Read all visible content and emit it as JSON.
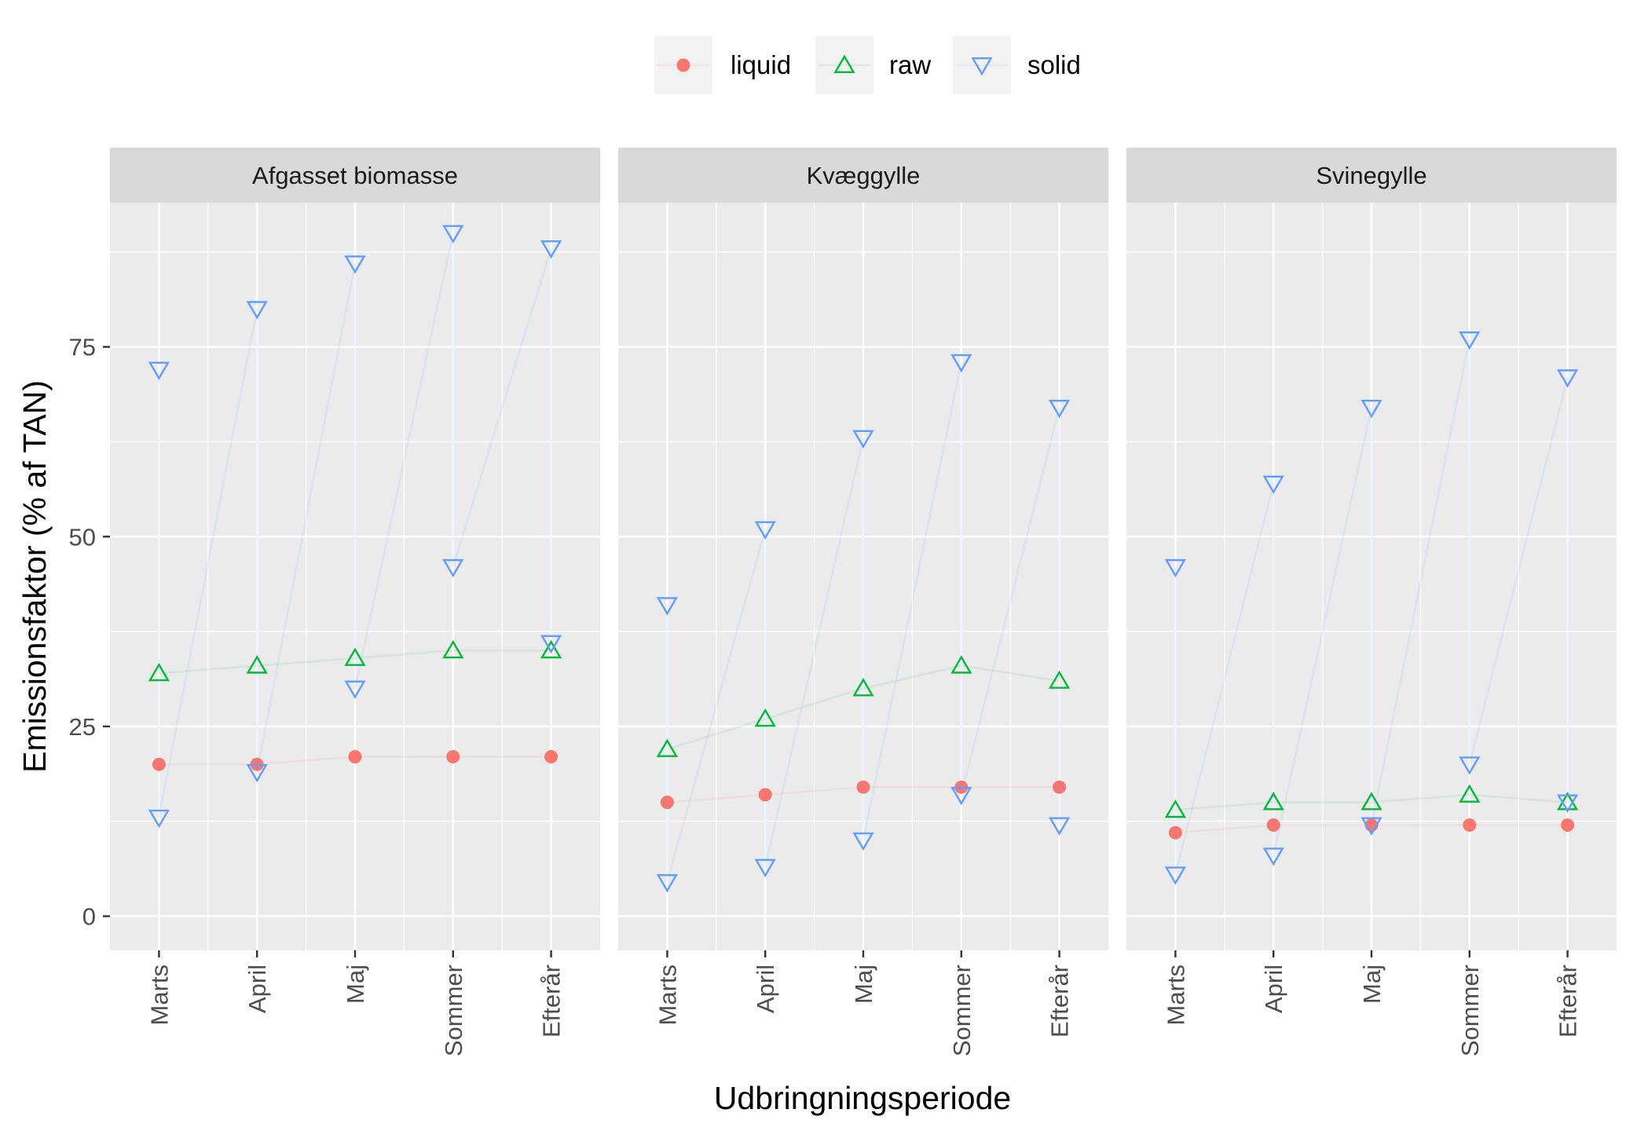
{
  "chart_data": {
    "type": "scatter",
    "facets": [
      "Afgasset biomasse",
      "Kvæggylle",
      "Svinegylle"
    ],
    "categories": [
      "Marts",
      "April",
      "Maj",
      "Sommer",
      "Efterår"
    ],
    "xlabel": "Udbringningsperiode",
    "ylabel": "Emissionsfaktor (% af TAN)",
    "ylim": [
      -4.5,
      94
    ],
    "yticks": [
      0,
      25,
      50,
      75
    ],
    "legend": {
      "placement": "top",
      "entries": [
        {
          "name": "liquid",
          "shape": "circle",
          "color": "#F8766D"
        },
        {
          "name": "raw",
          "shape": "triangle-up",
          "color": "#00BA38"
        },
        {
          "name": "solid",
          "shape": "triangle-down",
          "color": "#619CFF"
        }
      ]
    },
    "panels": [
      {
        "facet": "Afgasset biomasse",
        "series": [
          {
            "name": "liquid",
            "values": [
              20,
              20,
              21,
              21,
              21
            ]
          },
          {
            "name": "raw",
            "values": [
              32,
              33,
              34,
              35,
              35
            ]
          },
          {
            "name": "solid",
            "values": [
              72,
              13,
              80,
              19,
              86,
              30,
              90,
              46,
              88,
              36
            ]
          }
        ]
      },
      {
        "facet": "Kvæggylle",
        "series": [
          {
            "name": "liquid",
            "values": [
              15,
              16,
              17,
              17,
              17
            ]
          },
          {
            "name": "raw",
            "values": [
              22,
              26,
              30,
              33,
              31
            ]
          },
          {
            "name": "solid",
            "values": [
              41,
              4.5,
              51,
              6.5,
              63,
              10,
              73,
              16,
              67,
              12
            ]
          }
        ]
      },
      {
        "facet": "Svinegylle",
        "series": [
          {
            "name": "liquid",
            "values": [
              11,
              12,
              12,
              12,
              12
            ]
          },
          {
            "name": "raw",
            "values": [
              14,
              15,
              15,
              16,
              15
            ]
          },
          {
            "name": "solid",
            "values": [
              46,
              5.5,
              57,
              8,
              67,
              12,
              76,
              20,
              71,
              15
            ]
          }
        ]
      }
    ],
    "solid_x_index": [
      0,
      0,
      1,
      1,
      2,
      2,
      3,
      3,
      4,
      4
    ]
  }
}
